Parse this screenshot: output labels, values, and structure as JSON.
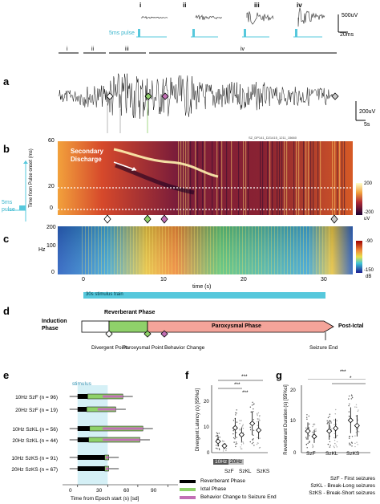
{
  "panel_labels": {
    "a": "a",
    "b": "b",
    "c": "c",
    "d": "d",
    "e": "e",
    "f": "f",
    "g": "g"
  },
  "inset": {
    "labels": [
      "i",
      "ii",
      "iii",
      "iv"
    ],
    "pulse_label": "5ms pulse",
    "scale_v": "500uV",
    "scale_t": "20ms"
  },
  "panel_a": {
    "phase_labels": [
      "i",
      "ii",
      "iii",
      "iv"
    ],
    "scale_v": "200uV",
    "scale_t": "5s"
  },
  "panel_b": {
    "ylabel": "Time from Pulse onset (ms)",
    "yticks": [
      "60",
      "20",
      "0"
    ],
    "annotation": "Secondary Discharge",
    "header_note": "SZ_DP141_D21415_1211_15660",
    "colorbar": [
      "200",
      "-200"
    ],
    "colorbar_unit": "uV",
    "pulse_label": "5ms pulse"
  },
  "panel_c": {
    "ylabel": "Hz",
    "yticks": [
      "200",
      "100",
      "0"
    ],
    "xticks": [
      "0",
      "10",
      "20",
      "30"
    ],
    "xlabel": "time (s)",
    "colorbar": [
      "-90",
      "-150"
    ],
    "colorbar_unit": "dB",
    "stim_label": "30s stimulus train"
  },
  "panel_d": {
    "induction": "Induction Phase",
    "reverberant": "Reverberant Phase",
    "paroxysmal": "Paroxysmal Phase",
    "post_ictal": "Post-Ictal",
    "markers": [
      "Divergent Point",
      "Paroxysmal Point",
      "Behavior Change",
      "Seizure End"
    ]
  },
  "panel_e": {
    "stimulus_label": "stimulus",
    "xlabel": "Time from Epoch start (s) [sd]",
    "xticks": [
      "0",
      "30",
      "60",
      "90"
    ],
    "rows": [
      "10Hz SzF (n = 96)",
      "20Hz SzF (n = 19)",
      "10Hz SzKL (n = 56)",
      "20Hz SzKL (n = 44)",
      "10Hz SzKS (n = 91)",
      "20Hz SzKS (n = 67)"
    ],
    "legend": [
      "Reverberant Phase",
      "Ictal Phase",
      "Behavior Change to Seizure End"
    ]
  },
  "panel_f": {
    "ylabel": "Divergent Latency (s) [95%ci]",
    "yticks": [
      "0",
      "10",
      "20"
    ],
    "categories": [
      "SzF",
      "SzKL",
      "SzKS"
    ],
    "legend": [
      "10Hz",
      "20Hz"
    ],
    "sig": [
      "***",
      "***",
      "***"
    ]
  },
  "panel_g": {
    "ylabel": "Reverberant Duration (s) [95%ci]",
    "yticks": [
      "0",
      "10",
      "20"
    ],
    "categories": [
      "SzF",
      "SzKL",
      "SzKS"
    ],
    "sig": [
      "***",
      "*"
    ]
  },
  "footnote": [
    "SzF - First seizures",
    "SzKL - Break-Long seizures",
    "SzKS - Break-Short seizures"
  ],
  "colors": {
    "reverberant": "#8fd16a",
    "paroxysmal": "#f4a49a",
    "behavior": "#c26fb5",
    "stimulus": "#56c8dc",
    "divergent": "#ffffff"
  },
  "chart_data": [
    {
      "type": "bar",
      "title": "",
      "xlabel": "Time from Epoch start (s) [sd]",
      "categories": [
        "10Hz SzF",
        "20Hz SzF",
        "10Hz SzKL",
        "20Hz SzKL",
        "10Hz SzKS",
        "20Hz SzKS"
      ],
      "series": [
        {
          "name": "Reverberant Phase",
          "start": [
            0,
            0,
            0,
            0,
            0,
            0
          ],
          "end": [
            10,
            9,
            12,
            11,
            27,
            27
          ]
        },
        {
          "name": "Ictal Phase",
          "start": [
            10,
            9,
            12,
            11,
            27,
            27
          ],
          "end": [
            45,
            38,
            65,
            62,
            31,
            31
          ]
        },
        {
          "name": "Behavior Change to Seizure End",
          "start": [
            25,
            20,
            25,
            25,
            28,
            28
          ],
          "end": [
            45,
            38,
            65,
            62,
            31,
            31
          ]
        }
      ],
      "xlim": [
        -15,
        100
      ]
    },
    {
      "type": "scatter",
      "ylabel": "Divergent Latency (s) [95%ci]",
      "categories": [
        "SzF",
        "SzKL",
        "SzKS"
      ],
      "series": [
        {
          "name": "10Hz",
          "values": [
            5,
            11,
            13
          ]
        },
        {
          "name": "20Hz",
          "values": [
            3,
            8,
            10
          ]
        }
      ],
      "ylim": [
        0,
        30
      ]
    },
    {
      "type": "scatter",
      "ylabel": "Reverberant Duration (s) [95%ci]",
      "categories": [
        "SzF",
        "SzKL",
        "SzKS"
      ],
      "series": [
        {
          "name": "10Hz",
          "values": [
            8,
            8,
            12
          ]
        },
        {
          "name": "20Hz",
          "values": [
            6,
            9,
            10
          ]
        }
      ],
      "ylim": [
        0,
        25
      ]
    }
  ]
}
